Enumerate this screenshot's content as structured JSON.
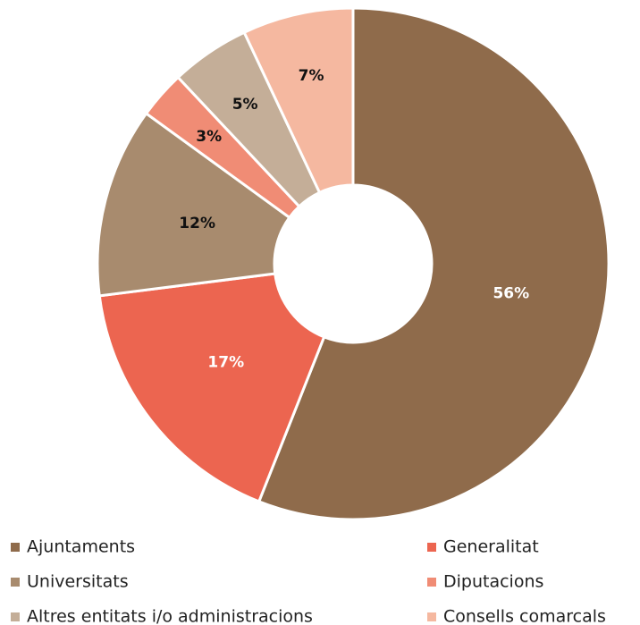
{
  "chart_data": {
    "type": "donut",
    "categories": [
      "Ajuntaments",
      "Generalitat",
      "Universitats",
      "Diputacions",
      "Altres entitats i/o administracions",
      "Consells comarcals"
    ],
    "values": [
      56,
      17,
      12,
      3,
      5,
      7
    ],
    "value_labels": [
      "56%",
      "17%",
      "12%",
      "3%",
      "5%",
      "7%"
    ],
    "colors": [
      "#8f6b4b",
      "#ec6550",
      "#a88b6e",
      "#f08c75",
      "#c4ae98",
      "#f5b8a0"
    ],
    "legend": "bottom"
  }
}
